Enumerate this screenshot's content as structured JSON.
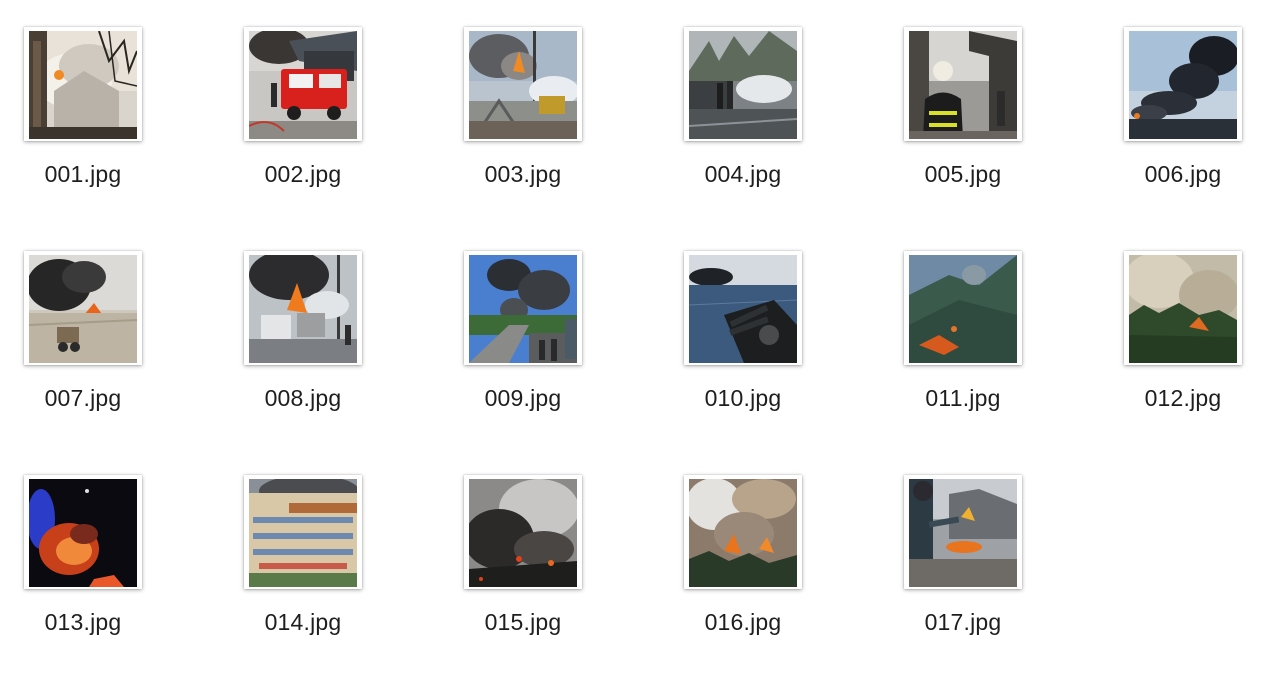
{
  "files": [
    {
      "name": "001.jpg",
      "icon": "house-fire-thumbnail-icon"
    },
    {
      "name": "002.jpg",
      "icon": "fire-truck-thumbnail-icon"
    },
    {
      "name": "003.jpg",
      "icon": "industrial-fire-thumbnail-icon"
    },
    {
      "name": "004.jpg",
      "icon": "street-smoke-thumbnail-icon"
    },
    {
      "name": "005.jpg",
      "icon": "firefighter-thumbnail-icon"
    },
    {
      "name": "006.jpg",
      "icon": "black-smoke-plume-thumbnail-icon"
    },
    {
      "name": "007.jpg",
      "icon": "desert-fire-thumbnail-icon"
    },
    {
      "name": "008.jpg",
      "icon": "tanker-fire-thumbnail-icon"
    },
    {
      "name": "009.jpg",
      "icon": "road-smoke-thumbnail-icon"
    },
    {
      "name": "010.jpg",
      "icon": "ship-gun-smoke-thumbnail-icon"
    },
    {
      "name": "011.jpg",
      "icon": "hillside-fire-thumbnail-icon"
    },
    {
      "name": "012.jpg",
      "icon": "forest-smoke-thumbnail-icon"
    },
    {
      "name": "013.jpg",
      "icon": "night-fire-thumbnail-icon"
    },
    {
      "name": "014.jpg",
      "icon": "building-fire-thumbnail-icon"
    },
    {
      "name": "015.jpg",
      "icon": "dark-smoke-fire-thumbnail-icon"
    },
    {
      "name": "016.jpg",
      "icon": "wildfire-thumbnail-icon"
    },
    {
      "name": "017.jpg",
      "icon": "person-torch-thumbnail-icon"
    }
  ]
}
